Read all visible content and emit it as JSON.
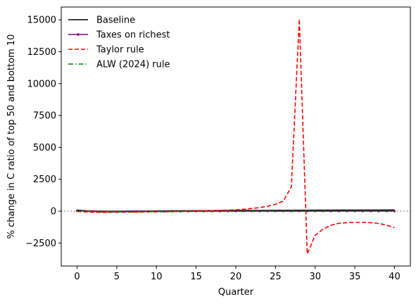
{
  "chart_data": {
    "type": "line",
    "xlabel": "Quarter",
    "ylabel": "% change in C ratio of top 50 and bottom 10",
    "xlim": [
      -2,
      42
    ],
    "ylim": [
      -4300,
      16000
    ],
    "xticks": [
      0,
      5,
      10,
      15,
      20,
      25,
      30,
      35,
      40
    ],
    "yticks": [
      -2500,
      0,
      2500,
      5000,
      7500,
      10000,
      12500,
      15000
    ],
    "grid": false,
    "legend_position": "top-left",
    "reference_line": {
      "y": 0,
      "style": "dotted",
      "color": "#808080"
    },
    "x": [
      0,
      1,
      2,
      3,
      4,
      5,
      6,
      7,
      8,
      9,
      10,
      11,
      12,
      13,
      14,
      15,
      16,
      17,
      18,
      19,
      20,
      21,
      22,
      23,
      24,
      25,
      26,
      27,
      28,
      29,
      30,
      31,
      32,
      33,
      34,
      35,
      36,
      37,
      38,
      39,
      40
    ],
    "series": [
      {
        "name": "Baseline",
        "color": "#000000",
        "style": "solid",
        "marker": "none",
        "values": [
          80,
          25,
          5,
          -10,
          -15,
          -15,
          -10,
          -5,
          0,
          5,
          10,
          15,
          20,
          25,
          30,
          35,
          38,
          42,
          45,
          48,
          50,
          53,
          55,
          57,
          60,
          62,
          64,
          66,
          68,
          70,
          72,
          74,
          76,
          78,
          80,
          82,
          84,
          86,
          88,
          90,
          92
        ]
      },
      {
        "name": "Taxes on richest",
        "color": "#800080",
        "style": "solid",
        "marker": "dot",
        "values": [
          30,
          10,
          -20,
          -40,
          -45,
          -45,
          -40,
          -35,
          -30,
          -25,
          -20,
          -15,
          -12,
          -10,
          -8,
          -6,
          -4,
          -2,
          -1,
          0,
          0,
          0,
          0,
          0,
          0,
          0,
          0,
          0,
          0,
          0,
          0,
          0,
          0,
          0,
          0,
          0,
          0,
          0,
          0,
          0,
          0
        ]
      },
      {
        "name": "Taylor rule",
        "color": "#ff0000",
        "style": "dashed",
        "marker": "none",
        "values": [
          -30,
          -60,
          -80,
          -90,
          -90,
          -85,
          -80,
          -75,
          -70,
          -60,
          -50,
          -40,
          -30,
          -20,
          -5,
          10,
          25,
          40,
          60,
          80,
          100,
          150,
          210,
          280,
          380,
          530,
          800,
          1900,
          15050,
          -3350,
          -1900,
          -1400,
          -1100,
          -950,
          -900,
          -880,
          -880,
          -900,
          -960,
          -1100,
          -1300
        ]
      },
      {
        "name": "ALW (2024) rule",
        "color": "#008000",
        "style": "dashdot",
        "marker": "none",
        "values": [
          20,
          -10,
          -30,
          -40,
          -45,
          -45,
          -45,
          -40,
          -40,
          -35,
          -35,
          -30,
          -30,
          -25,
          -25,
          -20,
          -20,
          -20,
          -15,
          -15,
          -15,
          -15,
          -10,
          -10,
          -10,
          -10,
          -10,
          -5,
          -5,
          -5,
          -5,
          -5,
          0,
          0,
          0,
          0,
          0,
          0,
          0,
          0,
          0
        ]
      }
    ]
  }
}
